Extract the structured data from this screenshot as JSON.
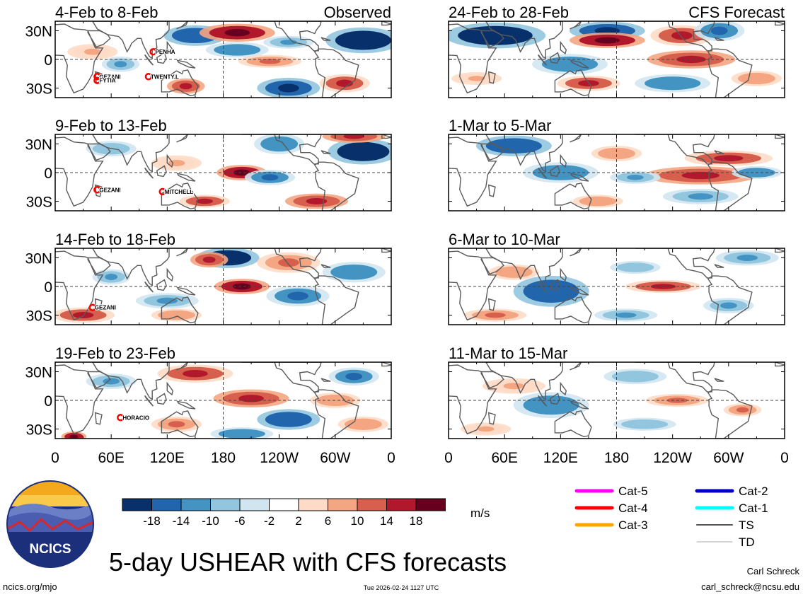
{
  "colors": {
    "scale": [
      "#08306b",
      "#2166ac",
      "#4393c3",
      "#92c5de",
      "#d1e5f0",
      "#ffffff",
      "#fddbc7",
      "#f4a582",
      "#d6604d",
      "#b2182b",
      "#67001f"
    ],
    "coast": "#5a5a5a",
    "cat5": "#ff00ff",
    "cat4": "#ff0000",
    "cat3": "#ffa500",
    "cat2": "#0000cd",
    "cat1": "#00ffff",
    "ts": "#555555",
    "td": "#aaaaaa"
  },
  "chart_data": {
    "type": "heatmap",
    "title": "5-day USHEAR with CFS forecasts",
    "variable": "USHEAR",
    "units": "m/s",
    "column_titles": {
      "left": "Observed",
      "right": "CFS Forecast"
    },
    "lat_ticks": [
      "30N",
      "0",
      "30S"
    ],
    "lon_ticks": [
      "0",
      "60E",
      "120E",
      "180",
      "120W",
      "60W",
      "0"
    ],
    "colorbar_levels": [
      "-18",
      "-14",
      "-10",
      "-6",
      "-2",
      "2",
      "6",
      "10",
      "14",
      "18"
    ],
    "panels": [
      {
        "period": "4-Feb to 8-Feb",
        "source": "Observed",
        "anomalies": [
          {
            "lon": 150,
            "lat": 25,
            "rx": 25,
            "ry": 8,
            "v": -14
          },
          {
            "lon": 195,
            "lat": 28,
            "rx": 30,
            "ry": 7,
            "v": 16
          },
          {
            "lon": 330,
            "lat": 20,
            "rx": 30,
            "ry": 10,
            "v": -20
          },
          {
            "lon": 250,
            "lat": 18,
            "rx": 20,
            "ry": 5,
            "v": -8
          },
          {
            "lon": 195,
            "lat": 10,
            "rx": 25,
            "ry": 6,
            "v": -10
          },
          {
            "lon": 230,
            "lat": -2,
            "rx": 25,
            "ry": 5,
            "v": 10
          },
          {
            "lon": 250,
            "lat": -30,
            "rx": 25,
            "ry": 8,
            "v": -16
          },
          {
            "lon": 310,
            "lat": -25,
            "rx": 20,
            "ry": 7,
            "v": 12
          },
          {
            "lon": 140,
            "lat": -28,
            "rx": 15,
            "ry": 6,
            "v": 14
          },
          {
            "lon": 70,
            "lat": -5,
            "rx": 15,
            "ry": 6,
            "v": -8
          },
          {
            "lon": 40,
            "lat": 8,
            "rx": 20,
            "ry": 6,
            "v": 6
          }
        ],
        "storms": [
          {
            "name": "PENHA",
            "lon": 105,
            "lat": 8
          },
          {
            "name": "GEZANI",
            "lon": 45,
            "lat": -18
          },
          {
            "name": "FYTIA",
            "lon": 45,
            "lat": -22
          },
          {
            "name": "TWENTY.L",
            "lon": 100,
            "lat": -18
          }
        ]
      },
      {
        "period": "9-Feb to 13-Feb",
        "source": "Observed",
        "anomalies": [
          {
            "lon": 330,
            "lat": 22,
            "rx": 28,
            "ry": 10,
            "v": -20
          },
          {
            "lon": 320,
            "lat": 38,
            "rx": 25,
            "ry": 5,
            "v": 14
          },
          {
            "lon": 200,
            "lat": 0,
            "rx": 20,
            "ry": 6,
            "v": 16
          },
          {
            "lon": 230,
            "lat": -5,
            "rx": 20,
            "ry": 6,
            "v": -12
          },
          {
            "lon": 240,
            "lat": 30,
            "rx": 20,
            "ry": 8,
            "v": -10
          },
          {
            "lon": 280,
            "lat": -30,
            "rx": 25,
            "ry": 6,
            "v": 14
          },
          {
            "lon": 130,
            "lat": 10,
            "rx": 20,
            "ry": 6,
            "v": 6
          },
          {
            "lon": 160,
            "lat": -30,
            "rx": 20,
            "ry": 5,
            "v": 12
          },
          {
            "lon": 60,
            "lat": 25,
            "rx": 20,
            "ry": 6,
            "v": -6
          }
        ],
        "storms": [
          {
            "name": "GEZANI",
            "lon": 45,
            "lat": -18
          },
          {
            "name": "MITCHELL",
            "lon": 115,
            "lat": -20
          }
        ]
      },
      {
        "period": "14-Feb to 18-Feb",
        "source": "Observed",
        "anomalies": [
          {
            "lon": 185,
            "lat": 30,
            "rx": 25,
            "ry": 8,
            "v": -18
          },
          {
            "lon": 165,
            "lat": 28,
            "rx": 15,
            "ry": 6,
            "v": 14
          },
          {
            "lon": 200,
            "lat": 0,
            "rx": 22,
            "ry": 6,
            "v": 16
          },
          {
            "lon": 250,
            "lat": 25,
            "rx": 25,
            "ry": 8,
            "v": 10
          },
          {
            "lon": 260,
            "lat": -10,
            "rx": 25,
            "ry": 8,
            "v": -12
          },
          {
            "lon": 120,
            "lat": -15,
            "rx": 25,
            "ry": 6,
            "v": -8
          },
          {
            "lon": 30,
            "lat": -30,
            "rx": 25,
            "ry": 6,
            "v": 12
          },
          {
            "lon": 130,
            "lat": -30,
            "rx": 20,
            "ry": 5,
            "v": 8
          },
          {
            "lon": 320,
            "lat": 15,
            "rx": 25,
            "ry": 8,
            "v": -10
          },
          {
            "lon": 60,
            "lat": 10,
            "rx": 15,
            "ry": 6,
            "v": -8
          }
        ],
        "storms": [
          {
            "name": "GEZANI",
            "lon": 40,
            "lat": -22
          }
        ]
      },
      {
        "period": "19-Feb to 23-Feb",
        "source": "Observed",
        "anomalies": [
          {
            "lon": 150,
            "lat": 28,
            "rx": 30,
            "ry": 7,
            "v": 12
          },
          {
            "lon": 210,
            "lat": 2,
            "rx": 30,
            "ry": 7,
            "v": 14
          },
          {
            "lon": 250,
            "lat": -20,
            "rx": 25,
            "ry": 8,
            "v": -14
          },
          {
            "lon": 200,
            "lat": -35,
            "rx": 25,
            "ry": 5,
            "v": -10
          },
          {
            "lon": 130,
            "lat": -25,
            "rx": 20,
            "ry": 6,
            "v": 10
          },
          {
            "lon": 20,
            "lat": -38,
            "rx": 10,
            "ry": 4,
            "v": 16
          },
          {
            "lon": 320,
            "lat": 25,
            "rx": 20,
            "ry": 7,
            "v": -12
          },
          {
            "lon": 300,
            "lat": 0,
            "rx": 20,
            "ry": 6,
            "v": 8
          },
          {
            "lon": 330,
            "lat": -25,
            "rx": 20,
            "ry": 6,
            "v": 8
          },
          {
            "lon": 60,
            "lat": 20,
            "rx": 20,
            "ry": 6,
            "v": -8
          }
        ],
        "storms": [
          {
            "name": "HORACIO",
            "lon": 70,
            "lat": -18
          }
        ]
      },
      {
        "period": "24-Feb to 28-Feb",
        "source": "CFS Forecast",
        "anomalies": [
          {
            "lon": 50,
            "lat": 25,
            "rx": 40,
            "ry": 10,
            "v": -18
          },
          {
            "lon": 170,
            "lat": 30,
            "rx": 30,
            "ry": 7,
            "v": -16
          },
          {
            "lon": 170,
            "lat": 20,
            "rx": 30,
            "ry": 6,
            "v": 16
          },
          {
            "lon": 250,
            "lat": 25,
            "rx": 25,
            "ry": 8,
            "v": 12
          },
          {
            "lon": 260,
            "lat": 0,
            "rx": 35,
            "ry": 7,
            "v": 14
          },
          {
            "lon": 290,
            "lat": 30,
            "rx": 20,
            "ry": 8,
            "v": -12
          },
          {
            "lon": 130,
            "lat": -5,
            "rx": 30,
            "ry": 8,
            "v": -10
          },
          {
            "lon": 240,
            "lat": -25,
            "rx": 30,
            "ry": 7,
            "v": -10
          },
          {
            "lon": 150,
            "lat": -25,
            "rx": 25,
            "ry": 6,
            "v": 12
          },
          {
            "lon": 330,
            "lat": -20,
            "rx": 20,
            "ry": 6,
            "v": 8
          },
          {
            "lon": 30,
            "lat": -20,
            "rx": 20,
            "ry": 5,
            "v": 6
          }
        ],
        "storms": []
      },
      {
        "period": "1-Mar to 5-Mar",
        "source": "CFS Forecast",
        "anomalies": [
          {
            "lon": 70,
            "lat": 28,
            "rx": 30,
            "ry": 8,
            "v": -14
          },
          {
            "lon": 270,
            "lat": -3,
            "rx": 45,
            "ry": 7,
            "v": 14
          },
          {
            "lon": 300,
            "lat": 15,
            "rx": 35,
            "ry": 6,
            "v": 12
          },
          {
            "lon": 120,
            "lat": 0,
            "rx": 30,
            "ry": 8,
            "v": -10
          },
          {
            "lon": 330,
            "lat": 0,
            "rx": 20,
            "ry": 5,
            "v": -10
          },
          {
            "lon": 200,
            "lat": -5,
            "rx": 20,
            "ry": 5,
            "v": -8
          },
          {
            "lon": 180,
            "lat": 20,
            "rx": 20,
            "ry": 6,
            "v": 8
          },
          {
            "lon": 160,
            "lat": -30,
            "rx": 20,
            "ry": 5,
            "v": 8
          },
          {
            "lon": 270,
            "lat": -25,
            "rx": 30,
            "ry": 6,
            "v": -8
          }
        ],
        "storms": []
      },
      {
        "period": "6-Mar to 10-Mar",
        "source": "CFS Forecast",
        "anomalies": [
          {
            "lon": 110,
            "lat": -5,
            "rx": 30,
            "ry": 12,
            "v": -14
          },
          {
            "lon": 230,
            "lat": 0,
            "rx": 30,
            "ry": 5,
            "v": 12
          },
          {
            "lon": 70,
            "lat": 15,
            "rx": 20,
            "ry": 6,
            "v": 8
          },
          {
            "lon": 50,
            "lat": -30,
            "rx": 25,
            "ry": 5,
            "v": 10
          },
          {
            "lon": 190,
            "lat": -30,
            "rx": 25,
            "ry": 5,
            "v": -8
          },
          {
            "lon": 300,
            "lat": -20,
            "rx": 20,
            "ry": 6,
            "v": -8
          },
          {
            "lon": 320,
            "lat": 30,
            "rx": 25,
            "ry": 6,
            "v": -8
          },
          {
            "lon": 200,
            "lat": 20,
            "rx": 20,
            "ry": 5,
            "v": -6
          }
        ],
        "storms": []
      },
      {
        "period": "11-Mar to 15-Mar",
        "source": "CFS Forecast",
        "anomalies": [
          {
            "lon": 110,
            "lat": -5,
            "rx": 30,
            "ry": 10,
            "v": -10
          },
          {
            "lon": 245,
            "lat": 0,
            "rx": 25,
            "ry": 5,
            "v": 10
          },
          {
            "lon": 315,
            "lat": -10,
            "rx": 15,
            "ry": 5,
            "v": 10
          },
          {
            "lon": 70,
            "lat": 15,
            "rx": 25,
            "ry": 6,
            "v": 6
          },
          {
            "lon": 40,
            "lat": -30,
            "rx": 20,
            "ry": 5,
            "v": 6
          },
          {
            "lon": 200,
            "lat": 25,
            "rx": 25,
            "ry": 6,
            "v": -6
          },
          {
            "lon": 210,
            "lat": -25,
            "rx": 25,
            "ry": 5,
            "v": -6
          }
        ],
        "storms": []
      }
    ]
  },
  "legend": {
    "items": [
      {
        "label": "Cat-5",
        "color_key": "cat5",
        "weight": "heavy"
      },
      {
        "label": "Cat-4",
        "color_key": "cat4",
        "weight": "heavy"
      },
      {
        "label": "Cat-3",
        "color_key": "cat3",
        "weight": "heavy"
      },
      {
        "label": "Cat-2",
        "color_key": "cat2",
        "weight": "heavy"
      },
      {
        "label": "Cat-1",
        "color_key": "cat1",
        "weight": "heavy"
      },
      {
        "label": "TS",
        "color_key": "ts",
        "weight": "medium"
      },
      {
        "label": "TD",
        "color_key": "td",
        "weight": "thin"
      }
    ]
  },
  "logo": {
    "text": "NCICS"
  },
  "footer": {
    "site": "ncics.org/mjo",
    "timestamp": "Tue 2026-02-24 1127 UTC",
    "author": "Carl Schreck",
    "email": "carl_schreck@ncsu.edu"
  }
}
